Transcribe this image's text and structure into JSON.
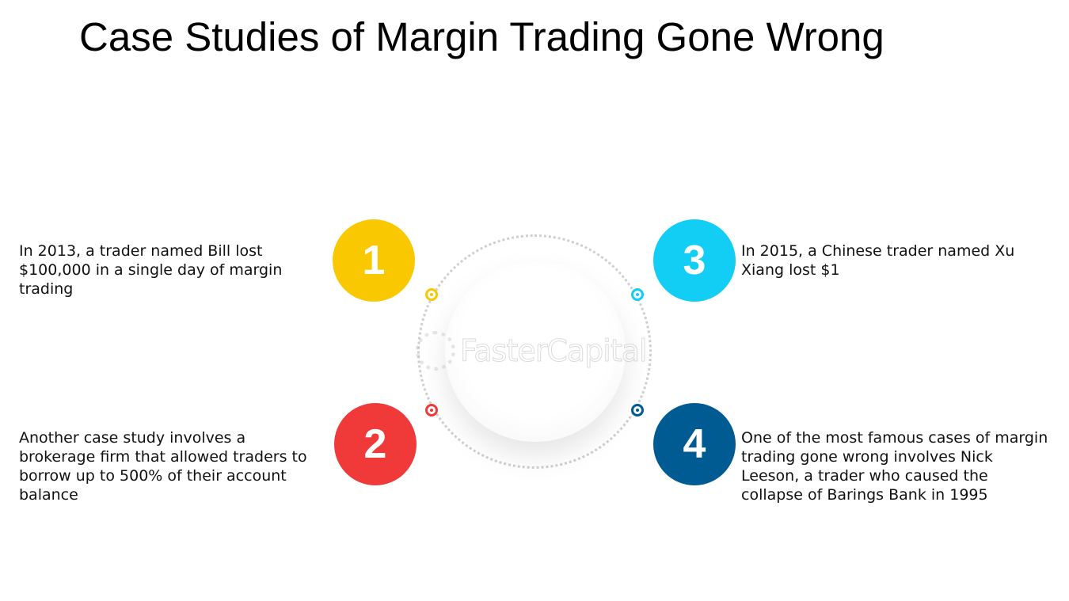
{
  "title": "Case Studies of Margin Trading Gone Wrong",
  "watermark": "FasterCapital",
  "cases": [
    {
      "number": "1",
      "color": "#F9C800",
      "text": "In 2013, a trader named Bill lost $100,000 in a single day of margin trading"
    },
    {
      "number": "2",
      "color": "#F03A3A",
      "text": "Another case study involves a brokerage firm that allowed traders to borrow up to 500% of their account balance"
    },
    {
      "number": "3",
      "color": "#12CEF5",
      "text": "In 2015, a Chinese trader named Xu Xiang lost $1"
    },
    {
      "number": "4",
      "color": "#005B93",
      "text": "One of the most famous cases of margin trading gone wrong involves Nick Leeson, a trader who caused the collapse of Barings Bank in 1995"
    }
  ]
}
